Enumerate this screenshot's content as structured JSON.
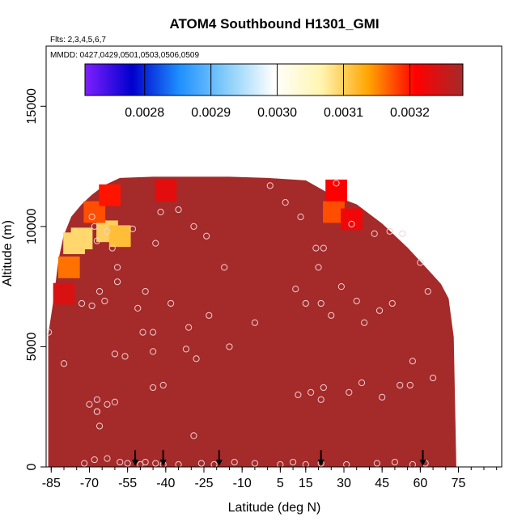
{
  "chart_data": {
    "type": "heatmap",
    "title": "ATOM4 Southbound H1301_GMI",
    "flights_label": "Flts: 2,3,4,5,6,7",
    "dates_label": "MMDD: 0427,0429,0501,0503,0506,0509",
    "xlabel": "Latitude (deg N)",
    "ylabel": "Altitude (m)",
    "xlim": [
      -87,
      92
    ],
    "ylim": [
      0,
      17500
    ],
    "x_ticks": [
      -85,
      -70,
      -55,
      -40,
      -25,
      -10,
      5,
      15,
      30,
      45,
      60,
      75
    ],
    "x_tick_labels": [
      "-85",
      "-70",
      "-55",
      "-40",
      "-25",
      "-10",
      "5",
      "15",
      "30",
      "45",
      "60",
      "75"
    ],
    "x_minor_step": 5,
    "y_ticks": [
      0,
      5000,
      10000,
      15000
    ],
    "y_tick_labels": [
      "0",
      "5000",
      "10000",
      "15000"
    ],
    "colorbar": {
      "range": [
        0.00271,
        0.00328
      ],
      "ticks": [
        0.0028,
        0.0029,
        0.003,
        0.0031,
        0.0032
      ],
      "tick_labels": [
        "0.0028",
        "0.0029",
        "0.0030",
        "0.0031",
        "0.0032"
      ],
      "colors": [
        "#7f1fff",
        "#0000cd",
        "#1e90ff",
        "#87cefa",
        "#ffffff",
        "#fff5b0",
        "#ffa500",
        "#ff0000",
        "#a52a2a"
      ]
    },
    "background_value": 0.00326,
    "background_color": "#a52a2a",
    "envelope": [
      [
        -86,
        5500
      ],
      [
        -84,
        6900
      ],
      [
        -82,
        8600
      ],
      [
        -80,
        9600
      ],
      [
        -77,
        10400
      ],
      [
        -73,
        10900
      ],
      [
        -69,
        11300
      ],
      [
        -64,
        11700
      ],
      [
        -58,
        12000
      ],
      [
        -45,
        12050
      ],
      [
        -30,
        12050
      ],
      [
        -15,
        12050
      ],
      [
        0,
        12000
      ],
      [
        15,
        11900
      ],
      [
        25,
        11300
      ],
      [
        35,
        10900
      ],
      [
        45,
        10100
      ],
      [
        55,
        9100
      ],
      [
        62,
        8300
      ],
      [
        68,
        7600
      ],
      [
        71,
        7000
      ],
      [
        73,
        5400
      ],
      [
        74,
        0
      ]
    ],
    "hotspots": [
      {
        "lat": -73,
        "alt": 9500,
        "value": 0.003092
      },
      {
        "lat": -76,
        "alt": 9300,
        "value": 0.003093
      },
      {
        "lat": -63,
        "alt": 9800,
        "value": 0.0031
      },
      {
        "lat": -68,
        "alt": 10600,
        "value": 0.003175
      },
      {
        "lat": -58,
        "alt": 9600,
        "value": 0.003115
      },
      {
        "lat": -78,
        "alt": 8300,
        "value": 0.00316
      },
      {
        "lat": -62,
        "alt": 11300,
        "value": 0.0032
      },
      {
        "lat": -40,
        "alt": 11500,
        "value": 0.00323
      },
      {
        "lat": 26,
        "alt": 10600,
        "value": 0.003175
      },
      {
        "lat": 27,
        "alt": 11500,
        "value": 0.00321
      },
      {
        "lat": 33,
        "alt": 10300,
        "value": 0.00322
      },
      {
        "lat": -80,
        "alt": 7200,
        "value": 0.00324
      }
    ],
    "observations": [
      [
        -86,
        5600
      ],
      [
        -80,
        4300
      ],
      [
        -73,
        6800
      ],
      [
        -69,
        6700
      ],
      [
        -69,
        10400
      ],
      [
        -68,
        10000
      ],
      [
        -67,
        9400
      ],
      [
        -66,
        7300
      ],
      [
        -64,
        6900
      ],
      [
        -63,
        9800
      ],
      [
        -61,
        9100
      ],
      [
        -59,
        7700
      ],
      [
        -60,
        4700
      ],
      [
        -59,
        8300
      ],
      [
        -56,
        4600
      ],
      [
        -53,
        9900
      ],
      [
        -51,
        6600
      ],
      [
        -48,
        7300
      ],
      [
        -49,
        5600
      ],
      [
        -45,
        5600
      ],
      [
        -45,
        4800
      ],
      [
        -45,
        3300
      ],
      [
        -44,
        9300
      ],
      [
        -42,
        10600
      ],
      [
        -41,
        3400
      ],
      [
        -38,
        6800
      ],
      [
        -35,
        10700
      ],
      [
        -32,
        4900
      ],
      [
        -31,
        5800
      ],
      [
        -29,
        10000
      ],
      [
        -28,
        4500
      ],
      [
        -24,
        9600
      ],
      [
        -23,
        6300
      ],
      [
        -17,
        8300
      ],
      [
        -15,
        5000
      ],
      [
        -5,
        6000
      ],
      [
        1,
        11700
      ],
      [
        7,
        11000
      ],
      [
        11,
        7400
      ],
      [
        12,
        3000
      ],
      [
        13,
        10400
      ],
      [
        15,
        6800
      ],
      [
        17,
        3100
      ],
      [
        19,
        9100
      ],
      [
        20,
        8300
      ],
      [
        21,
        6800
      ],
      [
        21,
        2800
      ],
      [
        22,
        9100
      ],
      [
        22,
        3300
      ],
      [
        25,
        6300
      ],
      [
        27,
        11800
      ],
      [
        29,
        7500
      ],
      [
        32,
        3100
      ],
      [
        33,
        10100
      ],
      [
        35,
        6900
      ],
      [
        37,
        3500
      ],
      [
        38,
        6000
      ],
      [
        42,
        9700
      ],
      [
        44,
        6500
      ],
      [
        45,
        2900
      ],
      [
        48,
        9800
      ],
      [
        49,
        6800
      ],
      [
        52,
        3400
      ],
      [
        53,
        9700
      ],
      [
        56,
        3400
      ],
      [
        57,
        4400
      ],
      [
        60,
        8500
      ],
      [
        63,
        7300
      ],
      [
        65,
        3700
      ],
      [
        -70,
        2600
      ],
      [
        -67,
        2800
      ],
      [
        -67,
        2300
      ],
      [
        -66,
        1700
      ],
      [
        -63,
        2600
      ],
      [
        -60,
        2700
      ],
      [
        -67,
        2300
      ],
      [
        -58,
        200
      ],
      [
        -55,
        150
      ],
      [
        -50,
        100
      ],
      [
        -48,
        200
      ],
      [
        -44,
        150
      ],
      [
        -41,
        100
      ],
      [
        -35,
        100
      ],
      [
        -29,
        1300
      ],
      [
        -26,
        150
      ],
      [
        -21,
        100
      ],
      [
        -13,
        200
      ],
      [
        -5,
        150
      ],
      [
        5,
        100
      ],
      [
        10,
        200
      ],
      [
        15,
        100
      ],
      [
        21,
        150
      ],
      [
        31,
        100
      ],
      [
        43,
        150
      ],
      [
        50,
        200
      ],
      [
        57,
        100
      ],
      [
        62,
        150
      ],
      [
        -63,
        350
      ],
      [
        -68,
        300
      ],
      [
        -72,
        150
      ]
    ],
    "arrows_lat": [
      -52,
      -41,
      -19,
      21,
      61
    ],
    "arrow_height": 700
  }
}
